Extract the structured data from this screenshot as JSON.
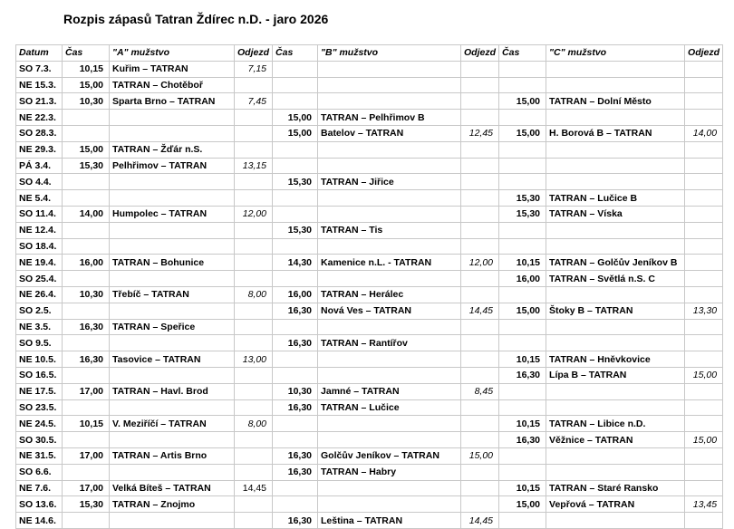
{
  "title": "Rozpis zápasů Tatran Ždírec n.D. - jaro 2026",
  "headers": [
    "Datum",
    "Čas",
    "\"A\" mužstvo",
    "Odjezd",
    "Čas",
    "\"B\" mužstvo",
    "Odjezd",
    "Čas",
    "\"C\" mužstvo",
    "Odjezd"
  ],
  "rows": [
    [
      "SO 7.3.",
      "10,15",
      "Kuřim – TATRAN",
      "7,15",
      "",
      "",
      "",
      "",
      "",
      ""
    ],
    [
      "NE 15.3.",
      "15,00",
      "TATRAN – Chotěboř",
      "",
      "",
      "",
      "",
      "",
      "",
      ""
    ],
    [
      "SO 21.3.",
      "10,30",
      "Sparta Brno – TATRAN",
      "7,45",
      "",
      "",
      "",
      "15,00",
      "TATRAN – Dolní Město",
      ""
    ],
    [
      "NE 22.3.",
      "",
      "",
      "",
      "15,00",
      "TATRAN – Pelhřimov B",
      "",
      "",
      "",
      ""
    ],
    [
      "SO 28.3.",
      "",
      "",
      "",
      "15,00",
      "Batelov – TATRAN",
      "12,45",
      "15,00",
      "H. Borová B – TATRAN",
      "14,00"
    ],
    [
      "NE 29.3.",
      "15,00",
      "TATRAN – Žďár n.S.",
      "",
      "",
      "",
      "",
      "",
      "",
      ""
    ],
    [
      "PÁ 3.4.",
      "15,30",
      "Pelhřimov – TATRAN",
      "13,15",
      "",
      "",
      "",
      "",
      "",
      ""
    ],
    [
      "SO 4.4.",
      "",
      "",
      "",
      "15,30",
      "TATRAN – Jiřice",
      "",
      "",
      "",
      ""
    ],
    [
      "NE 5.4.",
      "",
      "",
      "",
      "",
      "",
      "",
      "15,30",
      "TATRAN – Lučice B",
      ""
    ],
    [
      "SO 11.4.",
      "14,00",
      "Humpolec – TATRAN",
      "12,00",
      "",
      "",
      "",
      "15,30",
      "TATRAN – Víska",
      ""
    ],
    [
      "NE 12.4.",
      "",
      "",
      "",
      "15,30",
      "TATRAN – Tis",
      "",
      "",
      "",
      ""
    ],
    [
      "SO 18.4.",
      "",
      "",
      "",
      "",
      "",
      "",
      "",
      "",
      ""
    ],
    [
      "NE 19.4.",
      "16,00",
      "TATRAN – Bohunice",
      "",
      "14,30",
      "Kamenice n.L. - TATRAN",
      "12,00",
      "10,15",
      "TATRAN – Golčův Jeníkov B",
      ""
    ],
    [
      "SO 25.4.",
      "",
      "",
      "",
      "",
      "",
      "",
      "16,00",
      "TATRAN – Světlá n.S. C",
      ""
    ],
    [
      "NE 26.4.",
      "10,30",
      "Třebíč – TATRAN",
      "8,00",
      "16,00",
      "TATRAN – Herálec",
      "",
      "",
      "",
      ""
    ],
    [
      "SO 2.5.",
      "",
      "",
      "",
      "16,30",
      "Nová Ves – TATRAN",
      "14,45",
      "15,00",
      "Štoky B – TATRAN",
      "13,30"
    ],
    [
      "NE 3.5.",
      "16,30",
      "TATRAN – Speřice",
      "",
      "",
      "",
      "",
      "",
      "",
      ""
    ],
    [
      "SO 9.5.",
      "",
      "",
      "",
      "16,30",
      "TATRAN – Rantířov",
      "",
      "",
      "",
      ""
    ],
    [
      "NE 10.5.",
      "16,30",
      "Tasovice – TATRAN",
      "13,00",
      "",
      "",
      "",
      "10,15",
      "TATRAN – Hněvkovice",
      ""
    ],
    [
      "SO 16.5.",
      "",
      "",
      "",
      "",
      "",
      "",
      "16,30",
      "Lípa B – TATRAN",
      "15,00"
    ],
    [
      "NE 17.5.",
      "17,00",
      "TATRAN – Havl. Brod",
      "",
      "10,30",
      "Jamné – TATRAN",
      "8,45",
      "",
      "",
      ""
    ],
    [
      "SO 23.5.",
      "",
      "",
      "",
      "16,30",
      "TATRAN – Lučice",
      "",
      "",
      "",
      ""
    ],
    [
      "NE 24.5.",
      "10,15",
      "V. Meziříčí – TATRAN",
      "8,00",
      "",
      "",
      "",
      "10,15",
      "TATRAN – Libice n.D.",
      ""
    ],
    [
      "SO 30.5.",
      "",
      "",
      "",
      "",
      "",
      "",
      "16,30",
      "Věžnice – TATRAN",
      "15,00"
    ],
    [
      "NE 31.5.",
      "17,00",
      "TATRAN – Artis Brno",
      "",
      "16,30",
      "Golčův Jeníkov – TATRAN",
      "15,00",
      "",
      "",
      ""
    ],
    [
      "SO 6.6.",
      "",
      "",
      "",
      "16,30",
      "TATRAN – Habry",
      "",
      "",
      "",
      ""
    ],
    [
      "NE 7.6.",
      "17,00",
      "Velká Bíteš – TATRAN",
      "14,45",
      "",
      "",
      "",
      "10,15",
      "TATRAN – Staré Ransko",
      ""
    ],
    [
      "SO 13.6.",
      "15,30",
      "TATRAN – Znojmo",
      "",
      "",
      "",
      "",
      "15,00",
      "Vepřová – TATRAN",
      "13,45"
    ],
    [
      "NE 14.6.",
      "",
      "",
      "",
      "16,30",
      "Leština – TATRAN",
      "14,45",
      "",
      "",
      ""
    ]
  ]
}
